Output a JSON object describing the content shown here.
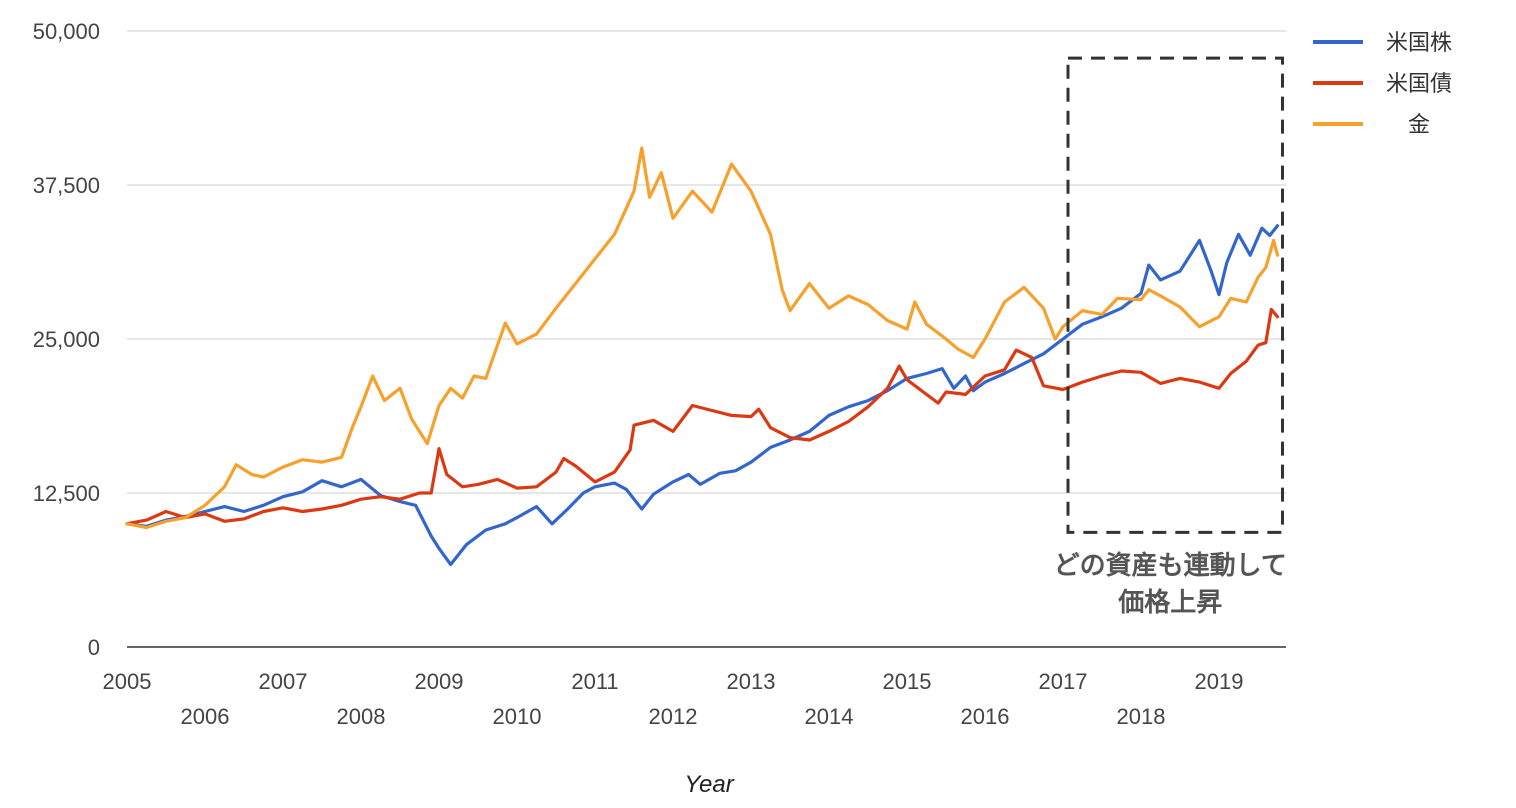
{
  "chart_data": {
    "type": "line",
    "xlabel": "Year",
    "ylabel": "",
    "ylim": [
      0,
      50000
    ],
    "xlim": [
      2005,
      2019.75
    ],
    "y_ticks": [
      0,
      12500,
      25000,
      37500,
      50000
    ],
    "y_tick_labels": [
      "0",
      "12,500",
      "25,000",
      "37,500",
      "50,000"
    ],
    "x_ticks": [
      2005,
      2006,
      2007,
      2008,
      2009,
      2010,
      2011,
      2012,
      2013,
      2014,
      2015,
      2016,
      2017,
      2018,
      2019
    ],
    "x_tick_labels": [
      "2005",
      "2006",
      "2007",
      "2008",
      "2009",
      "2010",
      "2011",
      "2012",
      "2013",
      "2014",
      "2015",
      "2016",
      "2017",
      "2018",
      "2019"
    ],
    "grid": true,
    "legend_position": "top-right",
    "annotation": {
      "lines": [
        "どの資産も連動して",
        "価格上昇"
      ],
      "box_x_range": [
        2017.0,
        2019.75
      ],
      "box_y_range": [
        9300,
        47800
      ]
    },
    "series": [
      {
        "name": "米国株",
        "color": "#3366cc",
        "points": [
          [
            2005.0,
            10000
          ],
          [
            2005.25,
            9800
          ],
          [
            2005.5,
            10300
          ],
          [
            2005.75,
            10600
          ],
          [
            2006.0,
            11000
          ],
          [
            2006.25,
            11400
          ],
          [
            2006.5,
            11000
          ],
          [
            2006.75,
            11500
          ],
          [
            2007.0,
            12200
          ],
          [
            2007.25,
            12600
          ],
          [
            2007.5,
            13500
          ],
          [
            2007.75,
            13000
          ],
          [
            2008.0,
            13600
          ],
          [
            2008.25,
            12300
          ],
          [
            2008.5,
            11800
          ],
          [
            2008.7,
            11500
          ],
          [
            2008.9,
            9000
          ],
          [
            2009.0,
            8000
          ],
          [
            2009.15,
            6700
          ],
          [
            2009.35,
            8300
          ],
          [
            2009.6,
            9500
          ],
          [
            2009.85,
            10000
          ],
          [
            2010.0,
            10500
          ],
          [
            2010.25,
            11400
          ],
          [
            2010.45,
            10000
          ],
          [
            2010.65,
            11200
          ],
          [
            2010.85,
            12500
          ],
          [
            2011.0,
            13000
          ],
          [
            2011.25,
            13300
          ],
          [
            2011.4,
            12800
          ],
          [
            2011.6,
            11200
          ],
          [
            2011.75,
            12400
          ],
          [
            2012.0,
            13400
          ],
          [
            2012.2,
            14000
          ],
          [
            2012.35,
            13200
          ],
          [
            2012.6,
            14100
          ],
          [
            2012.8,
            14300
          ],
          [
            2013.0,
            15000
          ],
          [
            2013.25,
            16200
          ],
          [
            2013.5,
            16800
          ],
          [
            2013.75,
            17500
          ],
          [
            2014.0,
            18800
          ],
          [
            2014.25,
            19500
          ],
          [
            2014.5,
            20000
          ],
          [
            2014.75,
            20800
          ],
          [
            2015.0,
            21800
          ],
          [
            2015.25,
            22200
          ],
          [
            2015.45,
            22600
          ],
          [
            2015.6,
            21000
          ],
          [
            2015.75,
            22000
          ],
          [
            2015.85,
            20800
          ],
          [
            2016.0,
            21500
          ],
          [
            2016.25,
            22200
          ],
          [
            2016.5,
            23000
          ],
          [
            2016.75,
            23800
          ],
          [
            2017.0,
            25000
          ],
          [
            2017.25,
            26200
          ],
          [
            2017.5,
            26800
          ],
          [
            2017.75,
            27500
          ],
          [
            2018.0,
            28700
          ],
          [
            2018.1,
            31000
          ],
          [
            2018.25,
            29800
          ],
          [
            2018.5,
            30500
          ],
          [
            2018.75,
            33000
          ],
          [
            2018.9,
            30500
          ],
          [
            2019.0,
            28600
          ],
          [
            2019.1,
            31200
          ],
          [
            2019.25,
            33500
          ],
          [
            2019.4,
            31800
          ],
          [
            2019.55,
            34000
          ],
          [
            2019.65,
            33400
          ],
          [
            2019.75,
            34200
          ]
        ]
      },
      {
        "name": "米国債",
        "color": "#dc3912",
        "points": [
          [
            2005.0,
            10000
          ],
          [
            2005.25,
            10300
          ],
          [
            2005.5,
            11000
          ],
          [
            2005.75,
            10500
          ],
          [
            2006.0,
            10800
          ],
          [
            2006.25,
            10200
          ],
          [
            2006.5,
            10400
          ],
          [
            2006.75,
            11000
          ],
          [
            2007.0,
            11300
          ],
          [
            2007.25,
            11000
          ],
          [
            2007.5,
            11200
          ],
          [
            2007.75,
            11500
          ],
          [
            2008.0,
            12000
          ],
          [
            2008.25,
            12200
          ],
          [
            2008.5,
            12000
          ],
          [
            2008.75,
            12500
          ],
          [
            2008.9,
            12500
          ],
          [
            2009.0,
            16100
          ],
          [
            2009.1,
            14000
          ],
          [
            2009.3,
            13000
          ],
          [
            2009.5,
            13200
          ],
          [
            2009.75,
            13600
          ],
          [
            2010.0,
            12900
          ],
          [
            2010.25,
            13000
          ],
          [
            2010.5,
            14200
          ],
          [
            2010.6,
            15300
          ],
          [
            2010.75,
            14700
          ],
          [
            2011.0,
            13400
          ],
          [
            2011.25,
            14200
          ],
          [
            2011.45,
            16000
          ],
          [
            2011.5,
            18000
          ],
          [
            2011.75,
            18400
          ],
          [
            2012.0,
            17500
          ],
          [
            2012.25,
            19600
          ],
          [
            2012.5,
            19200
          ],
          [
            2012.75,
            18800
          ],
          [
            2013.0,
            18700
          ],
          [
            2013.1,
            19300
          ],
          [
            2013.25,
            17800
          ],
          [
            2013.5,
            17000
          ],
          [
            2013.75,
            16800
          ],
          [
            2014.0,
            17500
          ],
          [
            2014.25,
            18300
          ],
          [
            2014.5,
            19500
          ],
          [
            2014.75,
            21000
          ],
          [
            2014.9,
            22800
          ],
          [
            2015.0,
            21700
          ],
          [
            2015.25,
            20500
          ],
          [
            2015.4,
            19800
          ],
          [
            2015.5,
            20700
          ],
          [
            2015.75,
            20500
          ],
          [
            2016.0,
            22000
          ],
          [
            2016.25,
            22500
          ],
          [
            2016.4,
            24100
          ],
          [
            2016.6,
            23500
          ],
          [
            2016.75,
            21200
          ],
          [
            2017.0,
            20900
          ],
          [
            2017.25,
            21500
          ],
          [
            2017.5,
            22000
          ],
          [
            2017.75,
            22400
          ],
          [
            2018.0,
            22300
          ],
          [
            2018.25,
            21400
          ],
          [
            2018.5,
            21800
          ],
          [
            2018.75,
            21500
          ],
          [
            2019.0,
            21000
          ],
          [
            2019.15,
            22200
          ],
          [
            2019.35,
            23200
          ],
          [
            2019.5,
            24500
          ],
          [
            2019.6,
            24700
          ],
          [
            2019.67,
            27400
          ],
          [
            2019.75,
            26800
          ]
        ]
      },
      {
        "name": "金",
        "color": "#f7a02c",
        "points": [
          [
            2005.0,
            10000
          ],
          [
            2005.25,
            9700
          ],
          [
            2005.5,
            10200
          ],
          [
            2005.75,
            10500
          ],
          [
            2006.0,
            11500
          ],
          [
            2006.25,
            13000
          ],
          [
            2006.4,
            14800
          ],
          [
            2006.6,
            14000
          ],
          [
            2006.75,
            13800
          ],
          [
            2007.0,
            14600
          ],
          [
            2007.25,
            15200
          ],
          [
            2007.5,
            15000
          ],
          [
            2007.75,
            15400
          ],
          [
            2007.9,
            18000
          ],
          [
            2008.0,
            19500
          ],
          [
            2008.15,
            22000
          ],
          [
            2008.3,
            20000
          ],
          [
            2008.5,
            21000
          ],
          [
            2008.65,
            18500
          ],
          [
            2008.85,
            16500
          ],
          [
            2009.0,
            19600
          ],
          [
            2009.15,
            21000
          ],
          [
            2009.3,
            20200
          ],
          [
            2009.45,
            22000
          ],
          [
            2009.6,
            21800
          ],
          [
            2009.85,
            26300
          ],
          [
            2010.0,
            24600
          ],
          [
            2010.25,
            25400
          ],
          [
            2010.5,
            27500
          ],
          [
            2010.75,
            29500
          ],
          [
            2011.0,
            31500
          ],
          [
            2011.25,
            33500
          ],
          [
            2011.5,
            37000
          ],
          [
            2011.6,
            40500
          ],
          [
            2011.7,
            36500
          ],
          [
            2011.85,
            38500
          ],
          [
            2012.0,
            34800
          ],
          [
            2012.25,
            37000
          ],
          [
            2012.5,
            35300
          ],
          [
            2012.75,
            39200
          ],
          [
            2013.0,
            37000
          ],
          [
            2013.25,
            33500
          ],
          [
            2013.4,
            29000
          ],
          [
            2013.5,
            27300
          ],
          [
            2013.75,
            29500
          ],
          [
            2014.0,
            27500
          ],
          [
            2014.25,
            28500
          ],
          [
            2014.5,
            27800
          ],
          [
            2014.75,
            26500
          ],
          [
            2015.0,
            25800
          ],
          [
            2015.1,
            28000
          ],
          [
            2015.25,
            26200
          ],
          [
            2015.5,
            25000
          ],
          [
            2015.65,
            24200
          ],
          [
            2015.85,
            23500
          ],
          [
            2016.0,
            25000
          ],
          [
            2016.25,
            28000
          ],
          [
            2016.5,
            29200
          ],
          [
            2016.75,
            27500
          ],
          [
            2016.9,
            25000
          ],
          [
            2017.0,
            26000
          ],
          [
            2017.25,
            27300
          ],
          [
            2017.5,
            27000
          ],
          [
            2017.7,
            28300
          ],
          [
            2018.0,
            28200
          ],
          [
            2018.1,
            29000
          ],
          [
            2018.25,
            28500
          ],
          [
            2018.5,
            27600
          ],
          [
            2018.75,
            26000
          ],
          [
            2019.0,
            26800
          ],
          [
            2019.15,
            28300
          ],
          [
            2019.35,
            28000
          ],
          [
            2019.5,
            30000
          ],
          [
            2019.6,
            30800
          ],
          [
            2019.7,
            33000
          ],
          [
            2019.75,
            31800
          ]
        ]
      }
    ]
  }
}
